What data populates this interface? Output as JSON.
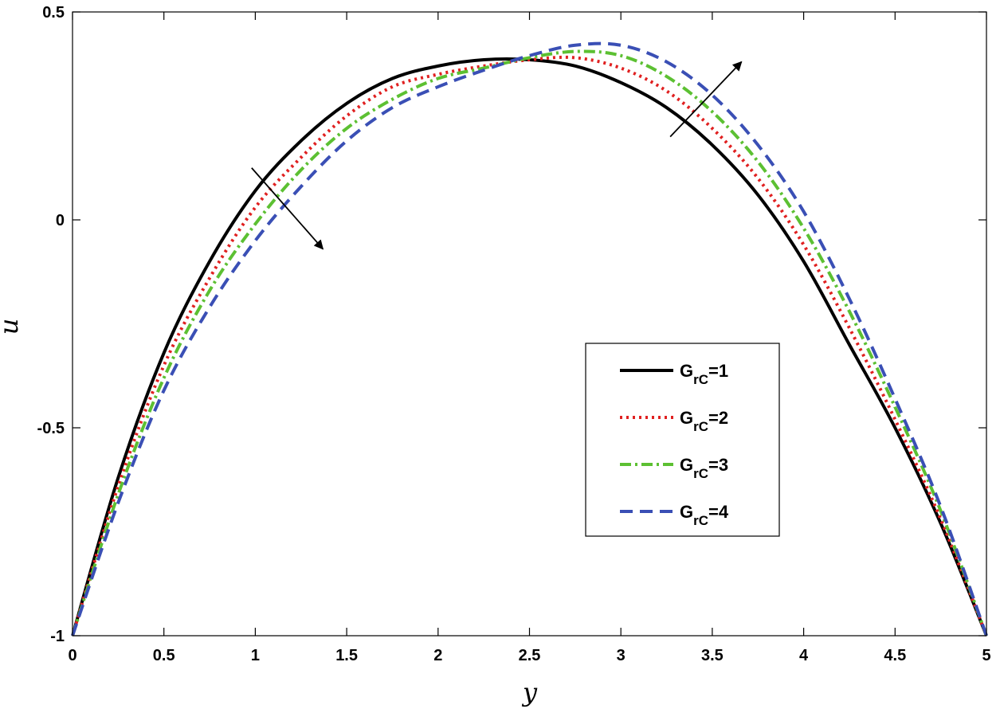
{
  "chart_data": {
    "type": "line",
    "xlabel": "y",
    "ylabel": "u",
    "xlim": [
      0,
      5
    ],
    "ylim": [
      -1,
      0.5
    ],
    "x_ticks": [
      "0",
      "0.5",
      "1",
      "1.5",
      "2",
      "2.5",
      "3",
      "3.5",
      "4",
      "4.5",
      "5"
    ],
    "y_ticks": [
      "-1",
      "-0.5",
      "0",
      "0.5"
    ],
    "grid": false,
    "legend_position": "right",
    "series": [
      {
        "legend_main": "G",
        "legend_sub": "rC",
        "legend_value": "=1",
        "color": "#000000",
        "style": "solid",
        "x": [
          0,
          0.25,
          0.5,
          0.75,
          1,
          1.25,
          1.5,
          1.75,
          2,
          2.25,
          2.5,
          2.75,
          3,
          3.25,
          3.5,
          3.75,
          4,
          4.25,
          4.5,
          4.75,
          5
        ],
        "y": [
          -1,
          -0.62,
          -0.32,
          -0.1,
          0.07,
          0.19,
          0.28,
          0.34,
          0.37,
          0.385,
          0.385,
          0.37,
          0.33,
          0.27,
          0.18,
          0.06,
          -0.1,
          -0.3,
          -0.5,
          -0.73,
          -1
        ]
      },
      {
        "legend_main": "G",
        "legend_sub": "rC",
        "legend_value": "=2",
        "color": "#e02020",
        "style": "dotted",
        "x": [
          0,
          0.25,
          0.5,
          0.75,
          1,
          1.25,
          1.5,
          1.75,
          2,
          2.25,
          2.5,
          2.75,
          3,
          3.25,
          3.5,
          3.75,
          4,
          4.25,
          4.5,
          4.75,
          5
        ],
        "y": [
          -1,
          -0.64,
          -0.35,
          -0.14,
          0.03,
          0.15,
          0.25,
          0.32,
          0.35,
          0.37,
          0.385,
          0.39,
          0.365,
          0.31,
          0.22,
          0.1,
          -0.06,
          -0.26,
          -0.48,
          -0.72,
          -1
        ]
      },
      {
        "legend_main": "G",
        "legend_sub": "rC",
        "legend_value": "=3",
        "color": "#5cc032",
        "style": "dashdot",
        "x": [
          0,
          0.25,
          0.5,
          0.75,
          1,
          1.25,
          1.5,
          1.75,
          2,
          2.25,
          2.5,
          2.75,
          3,
          3.25,
          3.5,
          3.75,
          4,
          4.25,
          4.5,
          4.75,
          5
        ],
        "y": [
          -1,
          -0.66,
          -0.38,
          -0.17,
          -0.01,
          0.12,
          0.22,
          0.29,
          0.34,
          0.365,
          0.39,
          0.405,
          0.395,
          0.345,
          0.26,
          0.14,
          -0.02,
          -0.22,
          -0.45,
          -0.7,
          -1
        ]
      },
      {
        "legend_main": "G",
        "legend_sub": "rC",
        "legend_value": "=4",
        "color": "#3a4fb5",
        "style": "dashed",
        "x": [
          0,
          0.25,
          0.5,
          0.75,
          1,
          1.25,
          1.5,
          1.75,
          2,
          2.25,
          2.5,
          2.75,
          3,
          3.25,
          3.5,
          3.75,
          4,
          4.25,
          4.5,
          4.75,
          5
        ],
        "y": [
          -1,
          -0.68,
          -0.41,
          -0.21,
          -0.05,
          0.08,
          0.19,
          0.27,
          0.32,
          0.36,
          0.395,
          0.42,
          0.42,
          0.38,
          0.3,
          0.18,
          0.02,
          -0.19,
          -0.43,
          -0.69,
          -1
        ]
      }
    ],
    "annotations": [
      {
        "type": "arrow",
        "from": [
          0.98,
          0.125
        ],
        "to": [
          1.37,
          -0.07
        ]
      },
      {
        "type": "arrow",
        "from": [
          3.27,
          0.2
        ],
        "to": [
          3.66,
          0.38
        ]
      }
    ]
  }
}
